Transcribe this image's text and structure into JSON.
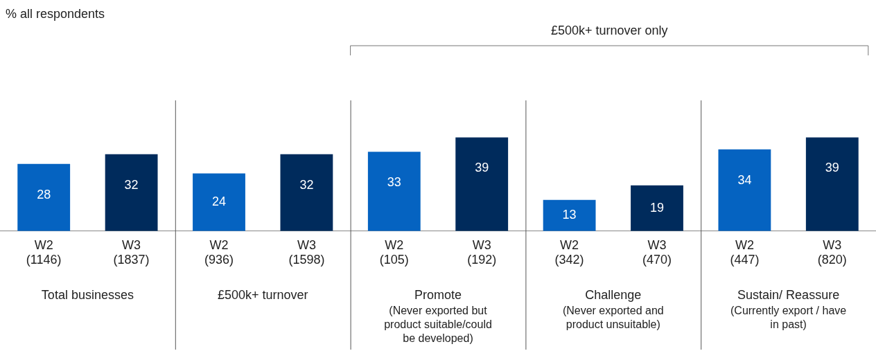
{
  "chart_data": {
    "type": "bar",
    "categories": [
      "W2\n(1146)",
      "W3\n(1837)",
      "W2\n(936)",
      "W3\n(1598)",
      "W2\n(105)",
      "W3\n(192)",
      "W2\n(342)",
      "W3\n(470)",
      "W2\n(447)",
      "W3\n(820)"
    ],
    "values": [
      28,
      32,
      24,
      32,
      33,
      39,
      13,
      19,
      34,
      39
    ],
    "colors": [
      "#0563c1",
      "#002b5c",
      "#0563c1",
      "#002b5c",
      "#0563c1",
      "#002b5c",
      "#0563c1",
      "#002b5c",
      "#0563c1",
      "#002b5c"
    ],
    "data_labels": true,
    "grid": false,
    "legend": false,
    "annotations": [
      "Total businesses",
      "£500k+ turnover",
      "Promote\n(Never exported but\nproduct suitable/could\nbe developed)",
      "Challenge\n(Never exported and\nproduct unsuitable)",
      "Sustain/ Reassure\n(Currently export / have\nin past)",
      "£500k+ turnover only",
      "% all respondents"
    ]
  }
}
